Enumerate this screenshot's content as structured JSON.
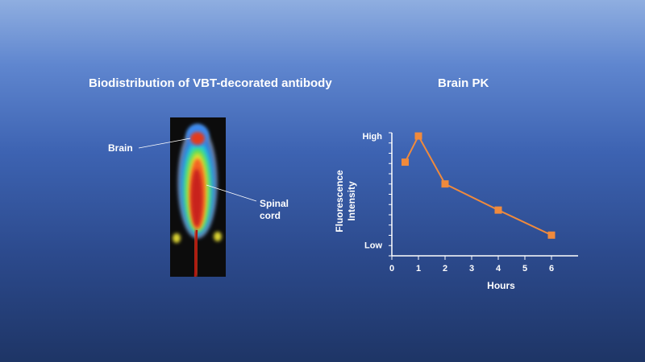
{
  "slide": {
    "left_title": "Biodistribution of VBT-decorated antibody",
    "right_title": "Brain PK",
    "brain_label": "Brain",
    "spinal_label_line1": "Spinal",
    "spinal_label_line2": "cord"
  },
  "colors": {
    "series": "#f08a3c",
    "axis": "#ffffff"
  },
  "chart_data": {
    "type": "line",
    "title": "Brain PK",
    "xlabel": "Hours",
    "ylabel_line1": "Fluorescence",
    "ylabel_line2": "Intensity",
    "xlim": [
      0,
      7
    ],
    "x_ticks": [
      0,
      1,
      2,
      3,
      4,
      5,
      6
    ],
    "y_tick_labels": [
      "Low",
      "High"
    ],
    "y_label_values": [
      0,
      1
    ],
    "ylim": [
      -0.1,
      1.03
    ],
    "series": [
      {
        "x": [
          0.5,
          1,
          2,
          4,
          6
        ],
        "y": [
          0.76,
          1.0,
          0.56,
          0.32,
          0.09
        ]
      }
    ]
  }
}
